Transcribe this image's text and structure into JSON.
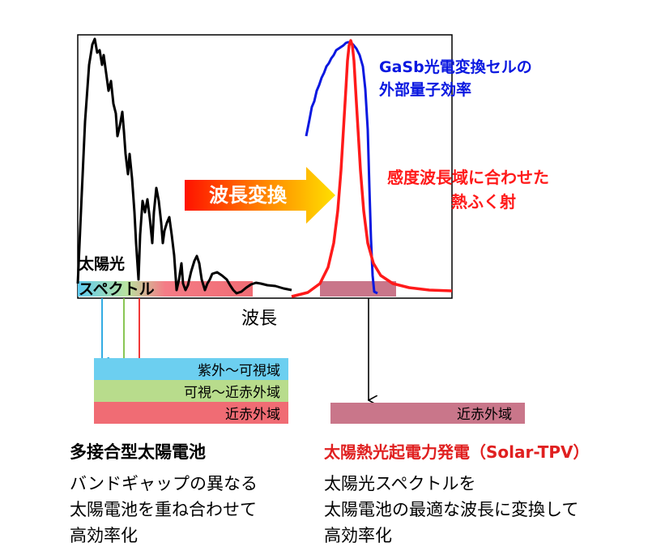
{
  "chart": {
    "sun_label_line1": "太陽光",
    "sun_label_line2": "スペクトル",
    "gasb_line1": "GaSb光電変換セルの",
    "gasb_line2": "外部量子効率",
    "thermal_line1": "感度波長域に合わせた",
    "thermal_line2": "熱ふく射",
    "arrow_label": "波長変換",
    "axis_label": "波長"
  },
  "bands": {
    "uv_vis": "紫外～可視域",
    "vis_nir": "可視～近赤外域",
    "nir": "近赤外域",
    "nir_right": "近赤外域"
  },
  "left": {
    "heading": "多接合型太陽電池",
    "line1": "バンドギャップの異なる",
    "line2": "太陽電池を重ね合わせて",
    "line3": "高効率化"
  },
  "right": {
    "heading": "太陽熱光起電力発電（Solar-TPV）",
    "line1": "太陽光スペクトルを",
    "line2": "太陽電池の最適な波長に変換して",
    "line3": "高効率化"
  },
  "colors": {
    "black_curve": "#000000",
    "blue_curve": "#0a18e0",
    "red_curve": "#ff1a1a",
    "heading_red": "#e02020",
    "band_blue": "#6ccff0",
    "band_green": "#b8dc8c",
    "band_pink": "#f06c74",
    "band_mauve": "#c9768a"
  }
}
